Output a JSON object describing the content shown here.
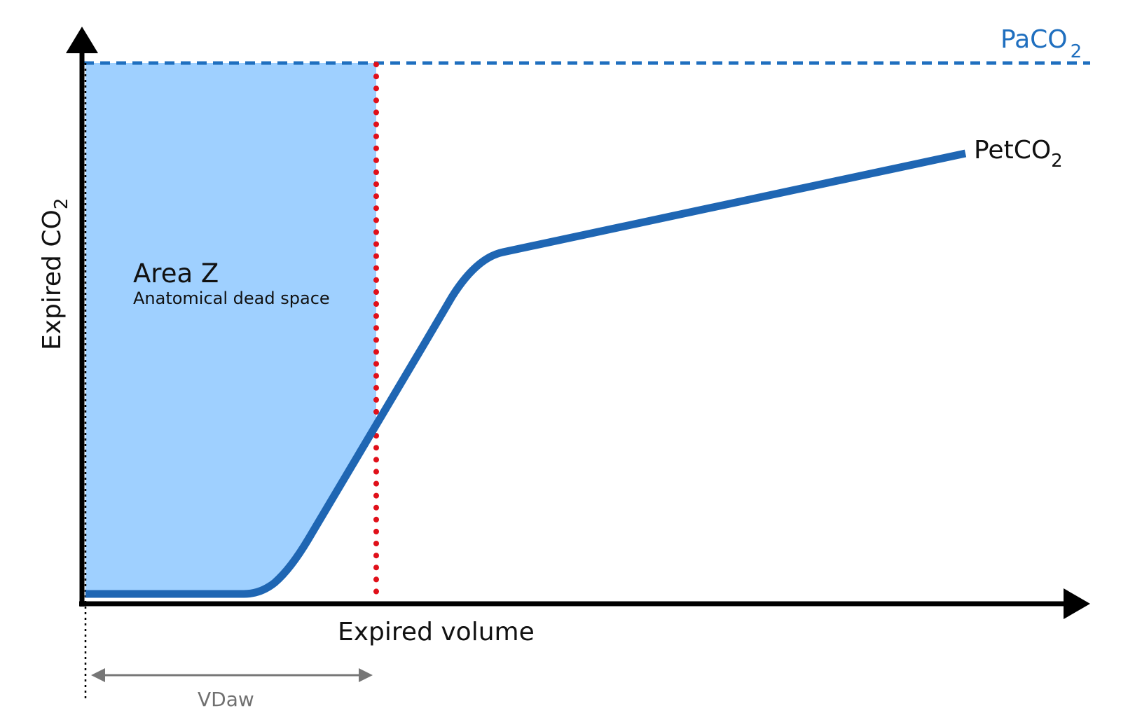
{
  "colors": {
    "axis": "#000000",
    "fill_area": "#9fd0ff",
    "curve": "#1f66b3",
    "paco2_line": "#1f6fbf",
    "vdaw_marker": "#e0101a",
    "vdaw_arrow": "#777777"
  },
  "labels": {
    "y_axis_main": "Expired CO",
    "y_axis_sub": "2",
    "x_axis": "Expired volume",
    "paco2_main": "PaCO",
    "paco2_sub": "2",
    "petco2_main": "PetCO",
    "petco2_sub": "2",
    "area_title": "Area Z",
    "area_subtitle": "Anatomical dead space",
    "vdaw": "VDaw"
  }
}
